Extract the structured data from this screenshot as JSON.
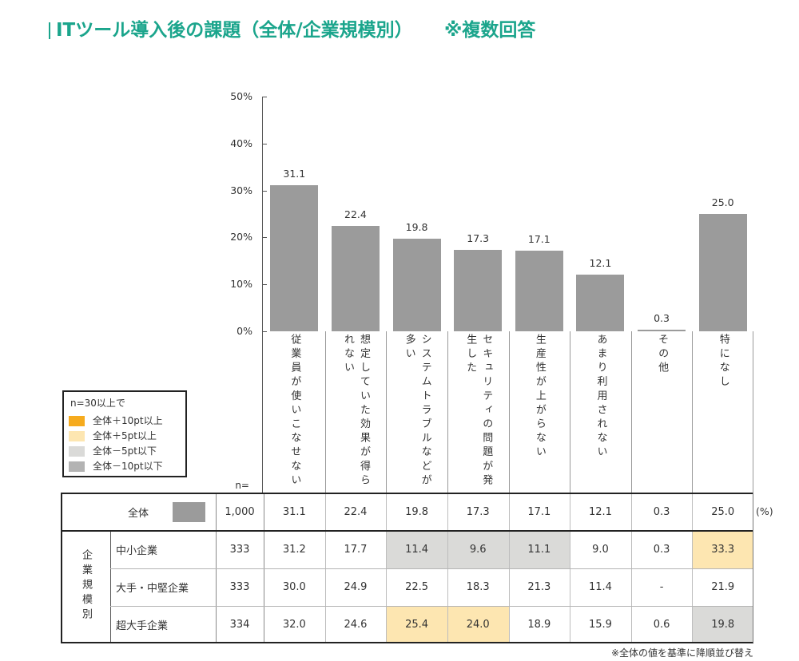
{
  "colors": {
    "accent": "#1ba58c",
    "bar": "#9b9b9b"
  },
  "chart_data": {
    "type": "bar",
    "title": "ITツール導入後の課題（全体/企業規模別）",
    "note": "※複数回答",
    "categories": [
      "従業員が使いこなせない",
      "想定していた効果が得られない",
      "システムトラブルなどが多い",
      "セキュリティの問題が発生した",
      "生産性が上がらない",
      "あまり利用されない",
      "その他",
      "特になし"
    ],
    "values": [
      31.1,
      22.4,
      19.8,
      17.3,
      17.1,
      12.1,
      0.3,
      25.0
    ],
    "value_labels": [
      "31.1",
      "22.4",
      "19.8",
      "17.3",
      "17.1",
      "12.1",
      "0.3",
      "25.0"
    ],
    "y_tick_labels": [
      "0%",
      "10%",
      "20%",
      "30%",
      "40%",
      "50%"
    ],
    "ylim": [
      0,
      50
    ],
    "grid": false
  },
  "legend": {
    "title": "n=30以上で",
    "items": [
      {
        "label": "全体＋10pt以上",
        "color": "#f6ab1e"
      },
      {
        "label": "全体＋5pt以上",
        "color": "#fde6b1"
      },
      {
        "label": "全体－5pt以下",
        "color": "#dadad8"
      },
      {
        "label": "全体－10pt以下",
        "color": "#b3b3b3"
      }
    ]
  },
  "table": {
    "n_header": "n=",
    "unit": "(%)",
    "total": {
      "label": "全体",
      "n": "1,000",
      "values": [
        "31.1",
        "22.4",
        "19.8",
        "17.3",
        "17.1",
        "12.1",
        "0.3",
        "25.0"
      ]
    },
    "group_label": "企業規模別",
    "rows": [
      {
        "label": "中小企業",
        "n": "333",
        "values": [
          "31.2",
          "17.7",
          "11.4",
          "9.6",
          "11.1",
          "9.0",
          "0.3",
          "33.3"
        ],
        "highlight": [
          null,
          null,
          2,
          2,
          2,
          null,
          null,
          1
        ]
      },
      {
        "label": "大手・中堅企業",
        "n": "333",
        "values": [
          "30.0",
          "24.9",
          "22.5",
          "18.3",
          "21.3",
          "11.4",
          "-",
          "21.9"
        ],
        "highlight": [
          null,
          null,
          null,
          null,
          null,
          null,
          null,
          null
        ]
      },
      {
        "label": "超大手企業",
        "n": "334",
        "values": [
          "32.0",
          "24.6",
          "25.4",
          "24.0",
          "18.9",
          "15.9",
          "0.6",
          "19.8"
        ],
        "highlight": [
          null,
          null,
          1,
          1,
          null,
          null,
          null,
          2
        ]
      }
    ]
  },
  "footnote": "※全体の値を基準に降順並び替え"
}
